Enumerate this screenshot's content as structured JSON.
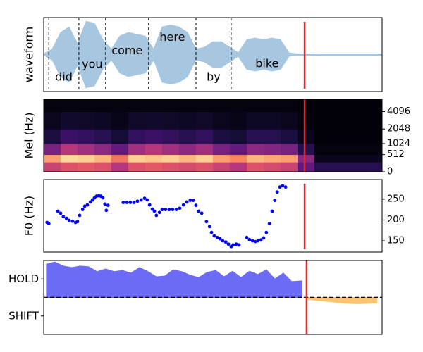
{
  "chart_data": [
    {
      "type": "waveform",
      "ylabel": "waveform",
      "xlim": [
        0,
        100
      ],
      "ylim": [
        -1,
        1
      ],
      "color": "#a7c6e0",
      "marker": 77.1,
      "marker_color": "#e8252a",
      "x": [
        0,
        2.5,
        5,
        7.5,
        10,
        12.5,
        15,
        17.5,
        20,
        22.5,
        25,
        27.5,
        30,
        32.5,
        35,
        37.5,
        40,
        42.5,
        45,
        47.5,
        50,
        52.5,
        55,
        57.5,
        60,
        62.5,
        65,
        67.5,
        70,
        72.5,
        75,
        77.5,
        80,
        82.5,
        85,
        87.5,
        90,
        92.5,
        95,
        97.5,
        100
      ],
      "values": [
        0.02,
        0.15,
        0.6,
        0.75,
        0.3,
        0.9,
        0.85,
        0.4,
        0.15,
        0.5,
        0.6,
        0.55,
        0.5,
        0.15,
        0.75,
        0.8,
        0.75,
        0.6,
        0.15,
        0.2,
        0.35,
        0.35,
        0.2,
        0.05,
        0.4,
        0.45,
        0.4,
        0.45,
        0.4,
        0.05,
        0.02,
        0.02,
        0.02,
        0.02,
        0.02,
        0.02,
        0.02,
        0.02,
        0.02,
        0.02,
        0.02
      ],
      "words": [
        {
          "label": "did",
          "start": 1.5,
          "end": 10.4
        },
        {
          "label": "you",
          "start": 10.4,
          "end": 18.3
        },
        {
          "label": "come",
          "start": 18.3,
          "end": 31.0
        },
        {
          "label": "here",
          "start": 31.0,
          "end": 45.0
        },
        {
          "label": "by",
          "start": 45.0,
          "end": 55.4
        },
        {
          "label": "bike",
          "start": 55.4,
          "end": 76.6
        }
      ]
    },
    {
      "type": "heatmap",
      "ylabel": "Mel (Hz)",
      "xlim": [
        0,
        100
      ],
      "ylim": [
        0,
        6400
      ],
      "yscale": "mel",
      "ytick_side": "right",
      "yticks": [
        0,
        512,
        1024,
        2048,
        4096
      ],
      "colormap": "magma",
      "marker": 77.1,
      "marker_color": "#e8252a",
      "xbins": [
        0,
        5,
        10,
        15,
        20,
        25,
        30,
        35,
        40,
        45,
        50,
        55,
        60,
        65,
        70,
        75,
        80,
        85,
        90,
        95,
        100
      ],
      "ybins": [
        0,
        256,
        512,
        1024,
        2048,
        4096,
        6400
      ],
      "z": [
        [
          0.55,
          0.6,
          0.62,
          0.6,
          0.5,
          0.6,
          0.62,
          0.6,
          0.58,
          0.6,
          0.55,
          0.5,
          0.6,
          0.58,
          0.55,
          0.3,
          0.15,
          0.15,
          0.15,
          0.15
        ],
        [
          0.8,
          0.92,
          0.9,
          0.85,
          0.7,
          0.9,
          0.88,
          0.9,
          0.85,
          0.9,
          0.8,
          0.75,
          0.85,
          0.82,
          0.8,
          0.4,
          0.05,
          0.05,
          0.05,
          0.05
        ],
        [
          0.35,
          0.5,
          0.45,
          0.4,
          0.3,
          0.45,
          0.5,
          0.45,
          0.4,
          0.45,
          0.35,
          0.3,
          0.4,
          0.38,
          0.35,
          0.15,
          0.02,
          0.02,
          0.02,
          0.02
        ],
        [
          0.12,
          0.2,
          0.18,
          0.15,
          0.1,
          0.18,
          0.2,
          0.18,
          0.15,
          0.18,
          0.12,
          0.1,
          0.15,
          0.15,
          0.12,
          0.05,
          0.01,
          0.01,
          0.01,
          0.01
        ],
        [
          0.05,
          0.08,
          0.07,
          0.06,
          0.04,
          0.07,
          0.08,
          0.07,
          0.06,
          0.07,
          0.05,
          0.04,
          0.06,
          0.06,
          0.05,
          0.02,
          0.01,
          0.01,
          0.01,
          0.01
        ],
        [
          0.02,
          0.02,
          0.02,
          0.02,
          0.02,
          0.02,
          0.02,
          0.02,
          0.02,
          0.02,
          0.02,
          0.02,
          0.02,
          0.02,
          0.02,
          0.01,
          0.01,
          0.01,
          0.01,
          0.01
        ]
      ]
    },
    {
      "type": "scatter",
      "ylabel": "F0 (Hz)",
      "xlim": [
        0,
        100
      ],
      "ylim": [
        123,
        297
      ],
      "ytick_side": "right",
      "yticks": [
        150,
        200,
        250
      ],
      "color": "#0000ff",
      "marker": 77.1,
      "marker_color": "#e8252a",
      "x": [
        1.0,
        1.5,
        4.2,
        5.0,
        5.8,
        6.7,
        7.5,
        8.5,
        9.4,
        10.0,
        10.6,
        11.5,
        12.1,
        12.9,
        13.8,
        14.4,
        15.0,
        15.6,
        16.3,
        16.9,
        17.5,
        18.1,
        18.5,
        19.0,
        23.5,
        24.6,
        25.6,
        26.7,
        27.7,
        28.8,
        29.8,
        30.6,
        31.3,
        32.1,
        32.7,
        33.3,
        34.2,
        35.0,
        36.0,
        37.1,
        38.1,
        39.2,
        40.2,
        41.3,
        42.3,
        43.3,
        44.2,
        45.0,
        45.8,
        46.7,
        48.1,
        49.0,
        49.6,
        50.4,
        51.3,
        52.1,
        52.9,
        53.8,
        54.6,
        55.4,
        56.0,
        56.9,
        57.7,
        60.0,
        60.8,
        61.7,
        62.5,
        63.3,
        64.2,
        65.0,
        65.8,
        66.7,
        67.5,
        68.3,
        69.0,
        69.8,
        70.6,
        71.5
      ],
      "values": [
        194,
        191,
        221,
        216,
        208,
        204,
        199,
        197,
        194,
        196,
        211,
        225,
        233,
        236,
        243,
        248,
        253,
        257,
        258,
        257,
        253,
        238,
        223,
        235,
        242,
        242,
        242,
        242,
        245,
        248,
        252,
        248,
        236,
        226,
        221,
        211,
        218,
        225,
        225,
        225,
        225,
        225,
        228,
        236,
        243,
        247,
        247,
        235,
        221,
        216,
        196,
        184,
        170,
        162,
        158,
        155,
        150,
        147,
        142,
        136,
        140,
        142,
        140,
        158,
        153,
        150,
        148,
        150,
        152,
        157,
        170,
        191,
        221,
        247,
        267,
        279,
        282,
        279
      ]
    },
    {
      "type": "area",
      "xlim": [
        0,
        100
      ],
      "ylim": [
        -1,
        1
      ],
      "ytick_side": "left",
      "yticks": [
        {
          "value": 0.5,
          "label": "HOLD"
        },
        {
          "value": -0.5,
          "label": "SHIFT"
        }
      ],
      "hline": 0,
      "marker": 77.7,
      "marker_color": "#e8252a",
      "series": [
        {
          "color": "#6b6bf5",
          "x": [
            0.8,
            3.3,
            5.8,
            8.3,
            10.8,
            13.3,
            15.8,
            18.3,
            20.8,
            23.3,
            25.8,
            28.3,
            30.8,
            33.3,
            35.8,
            38.3,
            40.8,
            43.3,
            45.8,
            48.3,
            50.8,
            53.3,
            55.8,
            58.3,
            60.8,
            63.3,
            65.8,
            68.3,
            70.8,
            73.3,
            76.3
          ],
          "values": [
            0.9,
            0.96,
            0.85,
            0.81,
            0.85,
            0.83,
            0.7,
            0.77,
            0.7,
            0.73,
            0.66,
            0.81,
            0.7,
            0.56,
            0.58,
            0.75,
            0.7,
            0.6,
            0.54,
            0.68,
            0.73,
            0.56,
            0.71,
            0.54,
            0.71,
            0.62,
            0.75,
            0.5,
            0.66,
            0.43,
            0.45
          ]
        },
        {
          "color": "#fdc46f",
          "x": [
            78.1,
            80.8,
            85.0,
            89.2,
            93.3,
            98.5
          ],
          "values": [
            -0.05,
            -0.08,
            -0.12,
            -0.16,
            -0.17,
            -0.15
          ]
        }
      ]
    }
  ]
}
